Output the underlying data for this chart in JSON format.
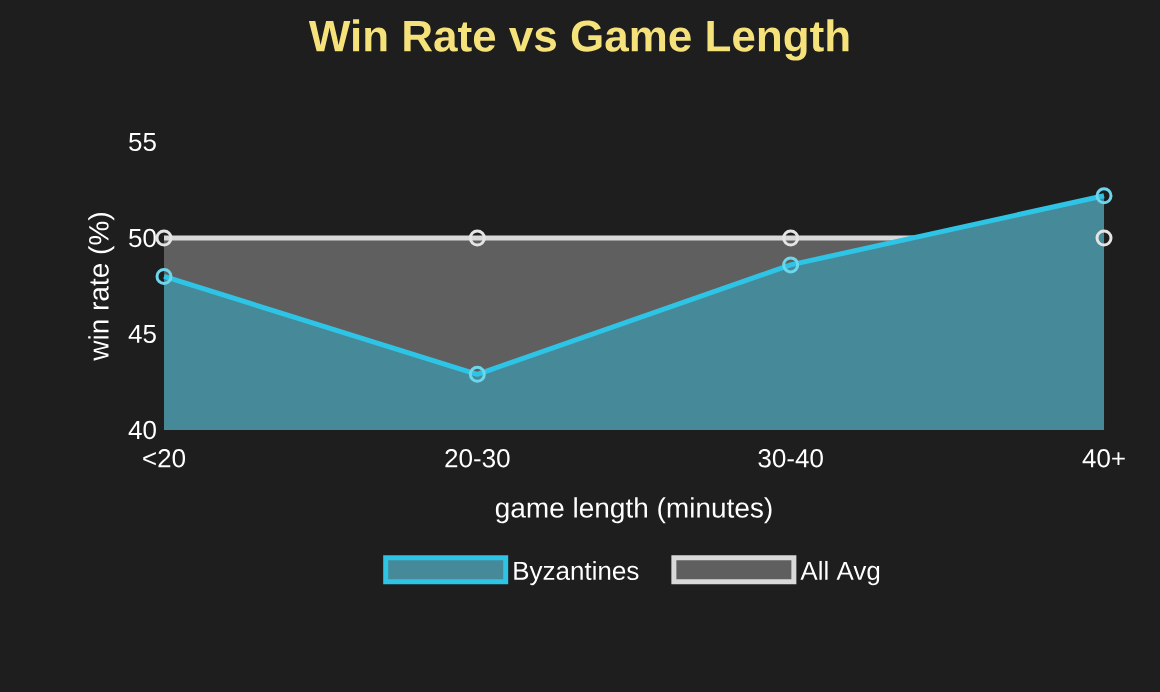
{
  "chart_data": {
    "type": "area",
    "title": "Win Rate vs Game Length",
    "xlabel": "game length (minutes)",
    "ylabel": "win rate (%)",
    "categories": [
      "<20",
      "20-30",
      "30-40",
      "40+"
    ],
    "series": [
      {
        "name": "Byzantines",
        "color": "#2ec4e6",
        "values": [
          48.0,
          42.9,
          48.6,
          52.2
        ]
      },
      {
        "name": "All Avg",
        "color": "#d9d9d9",
        "values": [
          50,
          50,
          50,
          50
        ]
      }
    ],
    "ylim": [
      40,
      55
    ],
    "yticks": [
      40,
      45,
      50,
      55
    ],
    "marker": "circle",
    "legend": "bottom"
  }
}
